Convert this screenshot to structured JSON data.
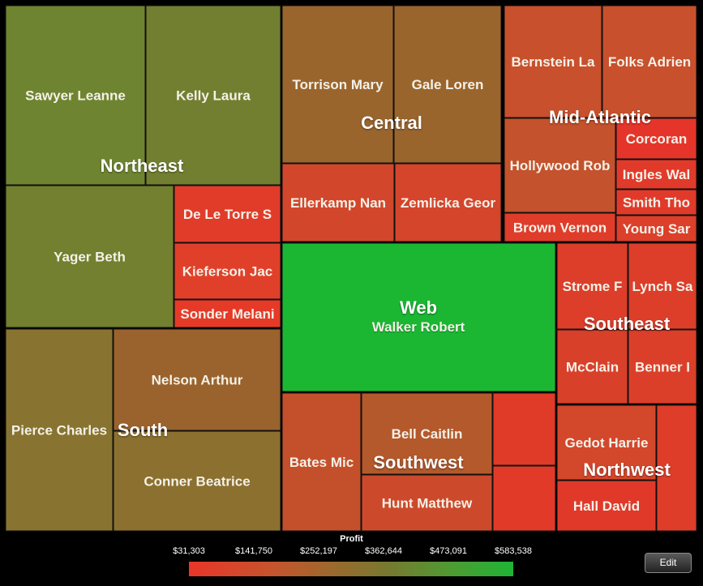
{
  "chart_data": {
    "type": "treemap",
    "size_metric": "unlabeled",
    "color_metric": "Profit",
    "colors": {
      "low": "#e8362a",
      "mid": "#9a6a2e",
      "high": "#1eb535"
    },
    "legend": {
      "title": "Profit",
      "ticks": [
        "$31,303",
        "$141,750",
        "$252,197",
        "$362,644",
        "$473,091",
        "$583,538"
      ],
      "min": 31303,
      "max": 583538
    },
    "regions": [
      {
        "name": "Northeast",
        "items": [
          {
            "label": "Sawyer Leanne",
            "color": "#6f8430"
          },
          {
            "label": "Kelly Laura",
            "color": "#727f30"
          },
          {
            "label": "Yager Beth",
            "color": "#72802f"
          },
          {
            "label": "De Le Torre S",
            "color": "#e13c2a"
          },
          {
            "label": "Kieferson Jac",
            "color": "#e0402a"
          },
          {
            "label": "Sonder Melani",
            "color": "#e53a28"
          }
        ]
      },
      {
        "name": "Central",
        "items": [
          {
            "label": "Torrison Mary",
            "color": "#9a652d"
          },
          {
            "label": "Gale Loren",
            "color": "#9a652d"
          },
          {
            "label": "Ellerkamp Nan",
            "color": "#d2472b"
          },
          {
            "label": "Zemlicka Geor",
            "color": "#d4452b"
          }
        ]
      },
      {
        "name": "Mid-Atlantic",
        "items": [
          {
            "label": "Bernstein La",
            "color": "#c8502c"
          },
          {
            "label": "Folks Adrien",
            "color": "#c8502c"
          },
          {
            "label": "Hollywood Rob",
            "color": "#c4522c"
          },
          {
            "label": "Corcoran",
            "color": "#e5352a"
          },
          {
            "label": "Ingles Wal",
            "color": "#e13a2a"
          },
          {
            "label": "Smith Tho",
            "color": "#e13a2a"
          },
          {
            "label": "Young Sar",
            "color": "#dc3f2a"
          },
          {
            "label": "Brown Vernon",
            "color": "#df3c2a"
          }
        ]
      },
      {
        "name": "Web",
        "items": [
          {
            "label": "Walker Robert",
            "color": "#1bb733"
          }
        ]
      },
      {
        "name": "Southeast",
        "items": [
          {
            "label": "Strome F",
            "color": "#dc3e2a"
          },
          {
            "label": "Lynch Sa",
            "color": "#dc3e2a"
          },
          {
            "label": "McClain",
            "color": "#d8402a"
          },
          {
            "label": "Benner I",
            "color": "#db3f2a"
          }
        ]
      },
      {
        "name": "South",
        "items": [
          {
            "label": "Pierce Charles",
            "color": "#887430"
          },
          {
            "label": "Nelson Arthur",
            "color": "#9a632d"
          },
          {
            "label": "Conner Beatrice",
            "color": "#8c702f"
          }
        ]
      },
      {
        "name": "Southwest",
        "items": [
          {
            "label": "Bates Mic",
            "color": "#c4502b"
          },
          {
            "label": "Bell Caitlin",
            "color": "#b4592c"
          },
          {
            "label": "Hunt Matthew",
            "color": "#cc4a2b"
          },
          {
            "label": "",
            "color": "#e03a28"
          },
          {
            "label": "",
            "color": "#e13a28"
          }
        ]
      },
      {
        "name": "Northwest",
        "items": [
          {
            "label": "Gedot Harrie",
            "color": "#d3472b"
          },
          {
            "label": "",
            "color": "#de3d2a"
          },
          {
            "label": "Hall David",
            "color": "#e0392a"
          }
        ]
      }
    ]
  },
  "toolbar": {
    "edit_label": "Edit"
  }
}
